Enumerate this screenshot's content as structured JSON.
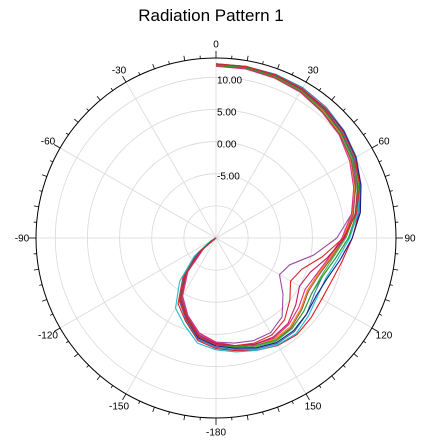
{
  "chart_data": {
    "type": "line",
    "subtype": "polar",
    "title": "Radiation Pattern 1",
    "angle_direction": "clockwise",
    "angle_zero": "top",
    "angle_ticks": [
      "0",
      "30",
      "60",
      "90",
      "120",
      "150",
      "-180",
      "-150",
      "-120",
      "-90",
      "-60",
      "-30"
    ],
    "angle_tick_values": [
      0,
      30,
      60,
      90,
      120,
      150,
      180,
      210,
      240,
      270,
      300,
      330
    ],
    "radial_range": [
      -15,
      13
    ],
    "radial_ticks": [
      "10.00",
      "5.00",
      "0.00",
      "-5.00"
    ],
    "radial_tick_values": [
      10,
      5,
      0,
      -5
    ],
    "grid": true,
    "legend": "none",
    "angles_deg": [
      0,
      10,
      20,
      30,
      40,
      50,
      60,
      70,
      80,
      90,
      100,
      110,
      120,
      130,
      140,
      150,
      160,
      170,
      180,
      190,
      200,
      210,
      220,
      230,
      240,
      250,
      260,
      270
    ],
    "series": [
      {
        "color": "#e41a1c",
        "values": [
          12.0,
          12.0,
          11.8,
          11.6,
          11.2,
          10.6,
          9.8,
          8.8,
          7.6,
          6.2,
          5.0,
          4.2,
          4.0,
          4.3,
          4.6,
          4.3,
          3.6,
          2.8,
          2.2,
          1.2,
          -1.2,
          -3.2,
          -7.0,
          -11.0,
          -14.0,
          -15.0,
          -15.0,
          -15.0
        ]
      },
      {
        "color": "#377eb8",
        "values": [
          12.1,
          12.1,
          12.1,
          12.0,
          11.6,
          11.0,
          10.2,
          9.0,
          7.6,
          5.6,
          3.8,
          2.6,
          2.6,
          3.4,
          4.0,
          4.0,
          3.4,
          2.6,
          2.0,
          1.0,
          -1.4,
          -3.6,
          -7.2,
          -11.4,
          -14.6,
          -15.0,
          -15.0,
          -15.0
        ]
      },
      {
        "color": "#4daf4a",
        "values": [
          11.8,
          11.8,
          11.6,
          11.4,
          10.8,
          10.2,
          9.4,
          8.4,
          7.0,
          5.2,
          3.4,
          2.4,
          2.2,
          2.8,
          3.4,
          3.6,
          3.0,
          2.4,
          1.6,
          0.6,
          -1.8,
          -4.0,
          -7.6,
          -11.8,
          -14.8,
          -15.0,
          -15.0,
          -15.0
        ]
      },
      {
        "color": "#984ea3",
        "values": [
          12.0,
          12.0,
          11.8,
          11.6,
          11.0,
          10.4,
          9.6,
          8.2,
          6.4,
          3.8,
          0.4,
          -2.8,
          -3.6,
          -1.4,
          1.0,
          2.0,
          2.0,
          1.6,
          1.2,
          0.2,
          -2.0,
          -4.4,
          -8.0,
          -12.4,
          -15.0,
          -15.0,
          -15.0,
          -15.0
        ]
      },
      {
        "color": "#ff7f00",
        "values": [
          11.9,
          11.9,
          11.7,
          11.4,
          10.8,
          10.2,
          9.2,
          8.0,
          6.6,
          4.8,
          3.0,
          1.8,
          1.4,
          2.2,
          3.0,
          3.2,
          2.8,
          2.2,
          1.4,
          0.4,
          -1.8,
          -4.2,
          -7.8,
          -12.0,
          -15.0,
          -15.0,
          -15.0,
          -15.0
        ]
      },
      {
        "color": "#17becf",
        "values": [
          12.1,
          12.1,
          11.9,
          11.7,
          11.3,
          10.7,
          9.9,
          8.9,
          7.4,
          5.8,
          4.2,
          3.2,
          3.2,
          3.8,
          4.4,
          4.2,
          3.6,
          3.0,
          2.4,
          1.6,
          -0.6,
          -2.4,
          -6.2,
          -10.6,
          -14.0,
          -15.0,
          -15.0,
          -15.0
        ]
      },
      {
        "color": "#e7298a",
        "values": [
          11.7,
          11.7,
          11.5,
          11.2,
          10.6,
          10.0,
          9.0,
          7.8,
          6.4,
          4.6,
          2.8,
          1.6,
          1.0,
          1.8,
          2.6,
          3.0,
          2.6,
          2.0,
          1.2,
          0.0,
          -2.2,
          -4.6,
          -8.2,
          -12.6,
          -15.0,
          -15.0,
          -15.0,
          -15.0
        ]
      },
      {
        "color": "#1a1a8c",
        "values": [
          12.0,
          12.0,
          11.9,
          11.8,
          11.4,
          10.9,
          10.1,
          9.0,
          7.8,
          6.2,
          4.6,
          3.4,
          3.0,
          3.4,
          3.8,
          3.8,
          3.2,
          2.4,
          1.8,
          0.8,
          -1.6,
          -3.8,
          -7.4,
          -11.6,
          -14.6,
          -15.0,
          -15.0,
          -15.0
        ]
      },
      {
        "color": "#8c564b",
        "values": [
          11.8,
          11.8,
          11.6,
          11.3,
          10.7,
          10.1,
          9.3,
          8.1,
          6.7,
          5.0,
          3.2,
          2.0,
          1.6,
          2.4,
          3.2,
          3.4,
          2.8,
          2.2,
          1.4,
          0.4,
          -2.0,
          -4.2,
          -7.8,
          -12.0,
          -15.0,
          -15.0,
          -15.0,
          -15.0
        ]
      },
      {
        "color": "#c2185b",
        "values": [
          12.0,
          12.0,
          11.9,
          11.7,
          11.2,
          10.5,
          9.7,
          8.5,
          7.0,
          5.0,
          2.6,
          0.6,
          0.0,
          1.2,
          2.4,
          2.8,
          2.6,
          2.0,
          1.4,
          0.4,
          -1.8,
          -4.0,
          -7.6,
          -12.0,
          -14.8,
          -15.0,
          -15.0,
          -15.0
        ]
      },
      {
        "color": "#2ca02c",
        "values": [
          11.9,
          11.9,
          11.8,
          11.5,
          11.0,
          10.4,
          9.6,
          8.6,
          7.2,
          5.6,
          3.8,
          2.6,
          2.2,
          2.8,
          3.4,
          3.4,
          2.8,
          2.2,
          1.6,
          0.6,
          -1.6,
          -3.8,
          -7.4,
          -11.8,
          -14.8,
          -15.0,
          -15.0,
          -15.0
        ]
      },
      {
        "color": "#d62728",
        "values": [
          12.1,
          12.1,
          12.0,
          11.8,
          11.4,
          10.8,
          10.0,
          8.8,
          7.2,
          4.8,
          1.8,
          -0.8,
          -1.6,
          0.0,
          1.6,
          2.4,
          2.4,
          2.0,
          1.6,
          0.6,
          -1.6,
          -3.8,
          -7.4,
          -11.8,
          -14.8,
          -15.0,
          -15.0,
          -15.0
        ]
      }
    ]
  }
}
